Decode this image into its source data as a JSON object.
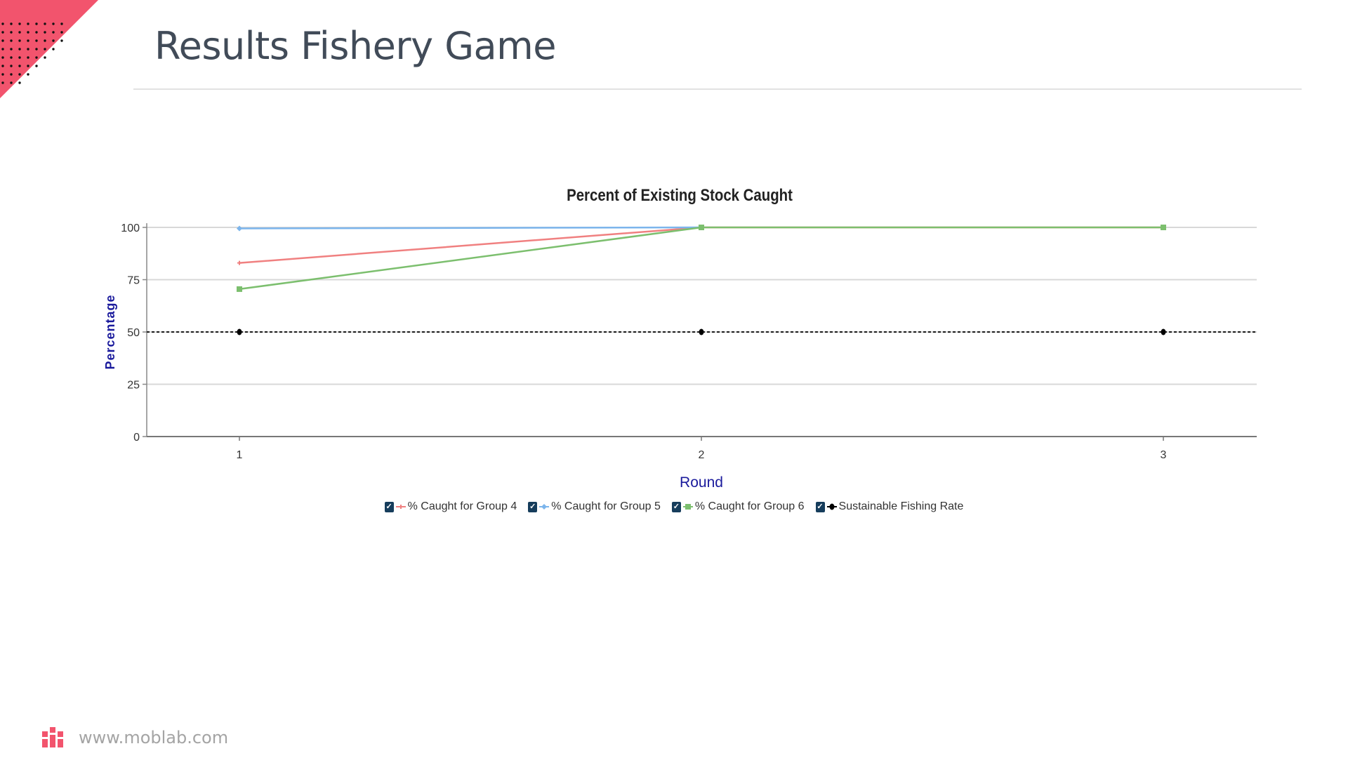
{
  "slide": {
    "title": "Results Fishery Game"
  },
  "footer": {
    "url": "www.moblab.com"
  },
  "colors": {
    "accent": "#f2546d",
    "title": "#414b58",
    "axis_label": "#1a1a9c"
  },
  "chart_data": {
    "type": "line",
    "title": "Percent of Existing Stock Caught",
    "xlabel": "Round",
    "ylabel": "Percentage",
    "categories": [
      "1",
      "2",
      "3"
    ],
    "ylim": [
      0,
      100
    ],
    "yticks": [
      0,
      25,
      50,
      75,
      100
    ],
    "grid": true,
    "legend_position": "bottom",
    "series": [
      {
        "name": "% Caught for Group 4",
        "values": [
          83,
          100,
          100
        ],
        "color": "#f08080",
        "marker": "cross",
        "dashed": false
      },
      {
        "name": "% Caught for Group 5",
        "values": [
          99.5,
          100,
          null
        ],
        "color": "#7cb5ec",
        "marker": "diamond",
        "dashed": false
      },
      {
        "name": "% Caught for Group 6",
        "values": [
          70.5,
          100,
          100
        ],
        "color": "#7cbf6e",
        "marker": "square",
        "dashed": false
      },
      {
        "name": "Sustainable Fishing Rate",
        "values": [
          50,
          50,
          50
        ],
        "color": "#000000",
        "marker": "circle",
        "dashed": true
      }
    ]
  }
}
